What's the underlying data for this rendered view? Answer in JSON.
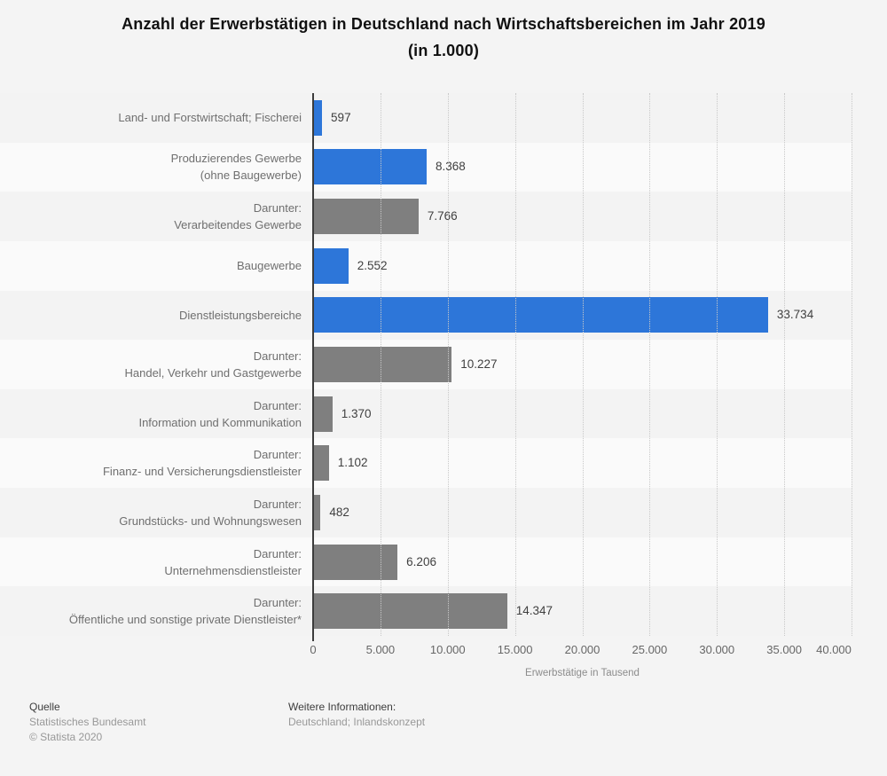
{
  "title": {
    "line1": "Anzahl der Erwerbstätigen in Deutschland nach Wirtschaftsbereichen im Jahr 2019",
    "line2": "(in 1.000)"
  },
  "chart_data": {
    "type": "bar",
    "orientation": "horizontal",
    "categories": [
      "Land- und Forstwirtschaft; Fischerei",
      "Produzierendes Gewerbe\n(ohne Baugewerbe)",
      "Darunter:\nVerarbeitendes Gewerbe",
      "Baugewerbe",
      "Dienstleistungsbereiche",
      "Darunter:\nHandel, Verkehr und Gastgewerbe",
      "Darunter:\nInformation und Kommunikation",
      "Darunter:\nFinanz- und Versicherungsdienstleister",
      "Darunter:\nGrundstücks- und Wohnungswesen",
      "Darunter:\nUnternehmensdienstleister",
      "Darunter:\nÖffentliche und sonstige private Dienstleister*"
    ],
    "values": [
      597,
      8368,
      7766,
      2552,
      33734,
      10227,
      1370,
      1102,
      482,
      6206,
      14347
    ],
    "value_labels": [
      "597",
      "8.368",
      "7.766",
      "2.552",
      "33.734",
      "10.227",
      "1.370",
      "1.102",
      "482",
      "6.206",
      "14.347"
    ],
    "bar_color_keys": [
      "blue",
      "blue",
      "gray",
      "blue",
      "blue",
      "gray",
      "gray",
      "gray",
      "gray",
      "gray",
      "gray"
    ],
    "x_ticks": [
      "0",
      "5.000",
      "10.000",
      "15.000",
      "20.000",
      "25.000",
      "30.000",
      "35.000",
      "40.000"
    ],
    "xlim": [
      0,
      40000
    ],
    "xlabel": "Erwerbstätige in Tausend",
    "grid": "dotted-vertical",
    "legend": "none",
    "colors": {
      "blue": "#2d76d9",
      "gray": "#7f7f7f",
      "band_gray": "#f3f3f3",
      "band_light": "#fafafa",
      "axis": "#3c3c3c"
    }
  },
  "footer": {
    "source_label": "Quelle",
    "source": "Statistisches Bundesamt",
    "copyright": "© Statista 2020",
    "info_label": "Weitere Informationen:",
    "info": "Deutschland; Inlandskonzept"
  }
}
